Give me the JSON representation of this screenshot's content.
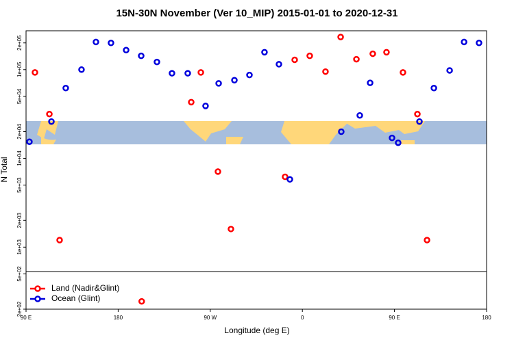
{
  "chart_data": {
    "type": "scatter",
    "title": "15N-30N November (Ver 10_MIP)   2015-01-01 to 2020-12-31",
    "x_label": "Longitude (deg E)",
    "y_label": "N Total",
    "log_y": true,
    "legend": "bottom-left",
    "xlim": [
      90,
      540
    ],
    "xticks": [
      {
        "value": 90,
        "label": "90 E"
      },
      {
        "value": 180,
        "label": "180"
      },
      {
        "value": 270,
        "label": "90 W"
      },
      {
        "value": 360,
        "label": "0"
      },
      {
        "value": 450,
        "label": "90 E"
      },
      {
        "value": 540,
        "label": "180"
      }
    ],
    "ylim": [
      200,
      274000
    ],
    "yticks": [
      {
        "value": 200,
        "label": "2e+02"
      },
      {
        "value": 500,
        "label": "5e+02"
      },
      {
        "value": 1000,
        "label": "1e+03"
      },
      {
        "value": 2000,
        "label": "2e+03"
      },
      {
        "value": 5000,
        "label": "5e+03"
      },
      {
        "value": 10000,
        "label": "1e+04"
      },
      {
        "value": 20000,
        "label": "2e+04"
      },
      {
        "value": 50000,
        "label": "5e+04"
      },
      {
        "value": 100000,
        "label": "1e+05"
      },
      {
        "value": 200000,
        "label": "2e+05"
      }
    ],
    "series": [
      {
        "name": "Land (Nadir&Glint)",
        "color": "#ff0000",
        "x": [
          98.7,
          112.8,
          122.8,
          203,
          251.4,
          260.8,
          277.5,
          290.2,
          343.1,
          352.5,
          367.2,
          382.6,
          397.4,
          412.8,
          428.8,
          442.2,
          458.3,
          472.4,
          481.8
        ],
        "values": [
          93000,
          31600,
          1200,
          245,
          43000,
          93000,
          7100,
          1600,
          6200,
          129000,
          143000,
          95000,
          233000,
          131000,
          151000,
          157000,
          93000,
          31600,
          1200
        ]
      },
      {
        "name": "Ocean (Glint)",
        "color": "#0000dd",
        "x": [
          93.3,
          114.8,
          128.8,
          144.2,
          158.3,
          173,
          187.8,
          202.5,
          217.9,
          232.6,
          248,
          265.4,
          278.2,
          293.6,
          308.3,
          323,
          337.1,
          347.8,
          398,
          416.1,
          426.2,
          447.6,
          453.6,
          474.4,
          488.5,
          503.9,
          518,
          532.6
        ],
        "values": [
          15400,
          26000,
          62000,
          100000,
          205000,
          200000,
          166000,
          143000,
          122000,
          91000,
          91000,
          39000,
          70000,
          76000,
          87000,
          157000,
          115000,
          5800,
          20000,
          30500,
          71000,
          17000,
          15000,
          26000,
          62000,
          98000,
          205000,
          200000
        ]
      }
    ]
  }
}
